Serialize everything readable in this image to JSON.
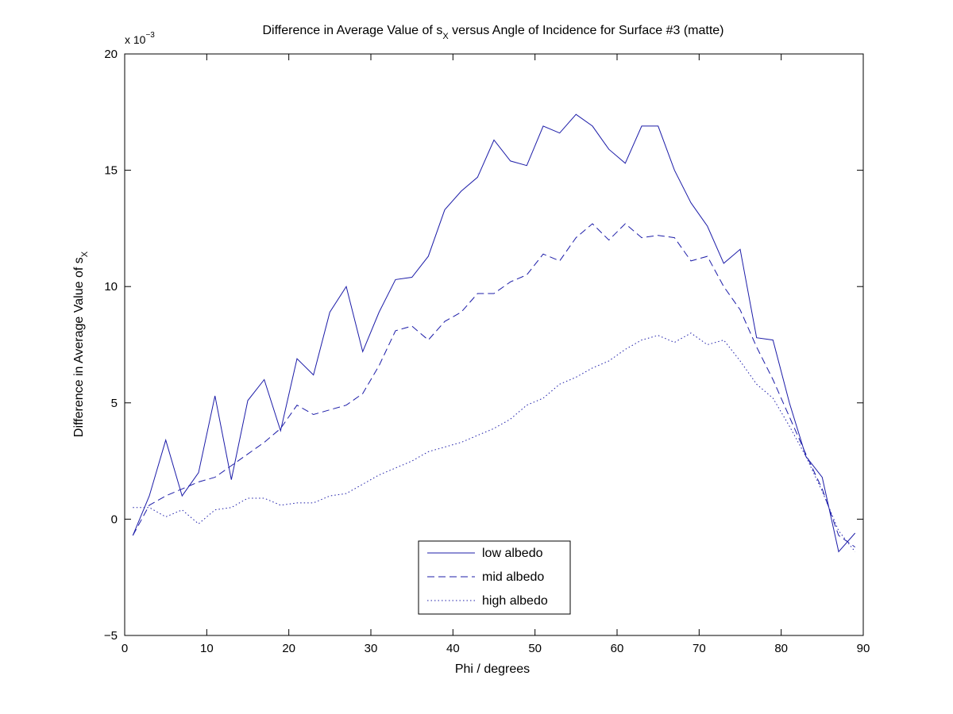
{
  "chart_data": {
    "type": "line",
    "title": {
      "pre": "Difference in Average Value of s",
      "sub": "X",
      "post": " versus Angle of Incidence for Surface #3 (matte)"
    },
    "xlabel": "Phi / degrees",
    "ylabel": {
      "pre": "Difference in Average Value of s",
      "sub": "X"
    },
    "y_multiplier": {
      "base": "x 10",
      "exp": "−3"
    },
    "xlim": [
      0,
      90
    ],
    "ylim": [
      -0.005,
      0.02
    ],
    "x_ticks": [
      0,
      10,
      20,
      30,
      40,
      50,
      60,
      70,
      80,
      90
    ],
    "y_ticks": [
      -0.005,
      0,
      0.005,
      0.01,
      0.015,
      0.02
    ],
    "y_tick_labels": [
      "−5",
      "0",
      "5",
      "10",
      "15",
      "20"
    ],
    "grid": false,
    "legend_position": "bottom-center",
    "colors": {
      "series": "#1c1ca8",
      "axes": "#000000",
      "background": "#ffffff"
    },
    "x": [
      1,
      3,
      5,
      7,
      9,
      11,
      13,
      15,
      17,
      19,
      21,
      23,
      25,
      27,
      29,
      31,
      33,
      35,
      37,
      39,
      41,
      43,
      45,
      47,
      49,
      51,
      53,
      55,
      57,
      59,
      61,
      63,
      65,
      67,
      69,
      71,
      73,
      75,
      77,
      79,
      81,
      83,
      85,
      87,
      89
    ],
    "series": [
      {
        "name": "low albedo",
        "style": "solid",
        "values": [
          -0.0007,
          0.001,
          0.0034,
          0.001,
          0.002,
          0.0053,
          0.0017,
          0.0051,
          0.006,
          0.0038,
          0.0069,
          0.0062,
          0.0089,
          0.01,
          0.0072,
          0.0089,
          0.0103,
          0.0104,
          0.0113,
          0.0133,
          0.0141,
          0.0147,
          0.0163,
          0.0154,
          0.0152,
          0.0169,
          0.0166,
          0.0174,
          0.0169,
          0.0159,
          0.0153,
          0.0169,
          0.0169,
          0.015,
          0.0136,
          0.0126,
          0.011,
          0.0116,
          0.0078,
          0.0077,
          0.005,
          0.0027,
          0.0018,
          -0.0014,
          -0.0006
        ]
      },
      {
        "name": "mid albedo",
        "style": "dashed",
        "values": [
          -0.0007,
          0.0006,
          0.001,
          0.0013,
          0.0016,
          0.0018,
          0.0023,
          0.0028,
          0.0033,
          0.0039,
          0.0049,
          0.0045,
          0.0047,
          0.0049,
          0.0054,
          0.0066,
          0.0081,
          0.0083,
          0.0077,
          0.0085,
          0.0089,
          0.0097,
          0.0097,
          0.0102,
          0.0105,
          0.0114,
          0.0111,
          0.0121,
          0.0127,
          0.012,
          0.0127,
          0.0121,
          0.0122,
          0.0121,
          0.0111,
          0.0113,
          0.01,
          0.009,
          0.0074,
          0.006,
          0.0044,
          0.0028,
          0.0013,
          -0.0007,
          -0.0012
        ]
      },
      {
        "name": "high albedo",
        "style": "dotted",
        "values": [
          0.0005,
          0.0005,
          0.0001,
          0.0004,
          -0.0002,
          0.0004,
          0.0005,
          0.0009,
          0.0009,
          0.0006,
          0.0007,
          0.0007,
          0.001,
          0.0011,
          0.0015,
          0.0019,
          0.0022,
          0.0025,
          0.0029,
          0.0031,
          0.0033,
          0.0036,
          0.0039,
          0.0043,
          0.0049,
          0.0052,
          0.0058,
          0.0061,
          0.0065,
          0.0068,
          0.0073,
          0.0077,
          0.0079,
          0.0076,
          0.008,
          0.0075,
          0.0077,
          0.0068,
          0.0058,
          0.0052,
          0.004,
          0.0027,
          0.0012,
          -0.0005,
          -0.0014
        ]
      }
    ]
  }
}
